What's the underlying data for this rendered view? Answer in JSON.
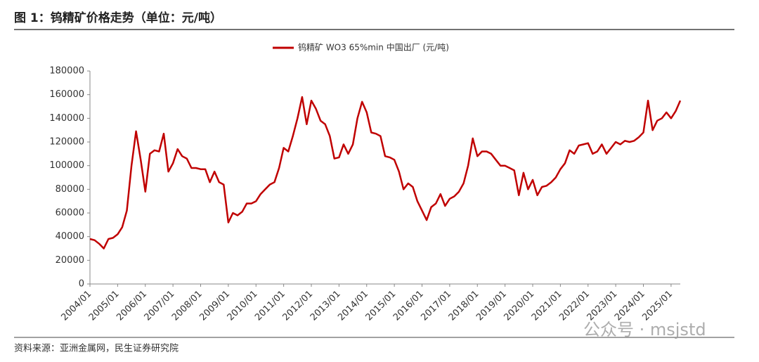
{
  "title": "图 1：钨精矿价格走势（单位：元/吨）",
  "source": "资料来源：亚洲金属网，民生证券研究院",
  "watermark": "公众号 · msjstd",
  "chart_data": {
    "type": "line",
    "x": [
      "2004/01",
      "2004/03",
      "2004/05",
      "2004/07",
      "2004/09",
      "2004/11",
      "2005/01",
      "2005/03",
      "2005/05",
      "2005/07",
      "2005/09",
      "2005/11",
      "2006/01",
      "2006/03",
      "2006/05",
      "2006/07",
      "2006/09",
      "2006/11",
      "2007/01",
      "2007/03",
      "2007/05",
      "2007/07",
      "2007/09",
      "2007/11",
      "2008/01",
      "2008/03",
      "2008/05",
      "2008/07",
      "2008/09",
      "2008/11",
      "2009/01",
      "2009/03",
      "2009/05",
      "2009/07",
      "2009/09",
      "2009/11",
      "2010/01",
      "2010/03",
      "2010/05",
      "2010/07",
      "2010/09",
      "2010/11",
      "2011/01",
      "2011/03",
      "2011/05",
      "2011/07",
      "2011/09",
      "2011/11",
      "2012/01",
      "2012/03",
      "2012/05",
      "2012/07",
      "2012/09",
      "2012/11",
      "2013/01",
      "2013/03",
      "2013/05",
      "2013/07",
      "2013/09",
      "2013/11",
      "2014/01",
      "2014/03",
      "2014/05",
      "2014/07",
      "2014/09",
      "2014/11",
      "2015/01",
      "2015/03",
      "2015/05",
      "2015/07",
      "2015/09",
      "2015/11",
      "2016/01",
      "2016/03",
      "2016/05",
      "2016/07",
      "2016/09",
      "2016/11",
      "2017/01",
      "2017/03",
      "2017/05",
      "2017/07",
      "2017/09",
      "2017/11",
      "2018/01",
      "2018/03",
      "2018/05",
      "2018/07",
      "2018/09",
      "2018/11",
      "2019/01",
      "2019/03",
      "2019/05",
      "2019/07",
      "2019/09",
      "2019/11",
      "2020/01",
      "2020/03",
      "2020/05",
      "2020/07",
      "2020/09",
      "2020/11",
      "2021/01",
      "2021/03",
      "2021/05",
      "2021/07",
      "2021/09",
      "2021/11",
      "2022/01",
      "2022/03",
      "2022/05",
      "2022/07",
      "2022/09",
      "2022/11",
      "2023/01",
      "2023/03",
      "2023/05",
      "2023/07",
      "2023/09",
      "2023/11",
      "2024/01",
      "2024/03",
      "2024/05",
      "2024/07",
      "2024/09",
      "2024/11",
      "2025/01",
      "2025/03",
      "2025/05"
    ],
    "series": [
      {
        "name": "钨精矿 WO3 65%min 中国出厂 (元/吨)",
        "color": "#c00000",
        "values": [
          38000,
          37000,
          34000,
          30000,
          38000,
          39000,
          42000,
          48000,
          62000,
          100000,
          129000,
          105000,
          78000,
          110000,
          113000,
          112000,
          127000,
          95000,
          102000,
          114000,
          108000,
          106000,
          98000,
          98000,
          97000,
          97000,
          86000,
          95000,
          86000,
          84000,
          52000,
          60000,
          58000,
          61000,
          68000,
          68000,
          70000,
          76000,
          80000,
          84000,
          86000,
          98000,
          115000,
          112000,
          125000,
          140000,
          158000,
          135000,
          155000,
          148000,
          138000,
          135000,
          125000,
          106000,
          107000,
          118000,
          110000,
          118000,
          140000,
          154000,
          145000,
          128000,
          127000,
          125000,
          108000,
          107000,
          105000,
          95000,
          80000,
          85000,
          82000,
          70000,
          62000,
          54000,
          65000,
          68000,
          76000,
          66000,
          72000,
          74000,
          78000,
          85000,
          100000,
          123000,
          108000,
          112000,
          112000,
          110000,
          105000,
          100000,
          100000,
          98000,
          96000,
          75000,
          94000,
          80000,
          88000,
          75000,
          82000,
          83000,
          86000,
          90000,
          97000,
          102000,
          113000,
          110000,
          117000,
          118000,
          119000,
          110000,
          112000,
          118000,
          110000,
          115000,
          120000,
          118000,
          121000,
          120000,
          121000,
          124000,
          128000,
          155000,
          130000,
          138000,
          140000,
          145000,
          140000,
          146000,
          155000
        ]
      }
    ],
    "xlim": [
      "2004/01",
      "2025/05"
    ],
    "xticks": [
      "2004/01",
      "2005/01",
      "2006/01",
      "2007/01",
      "2008/01",
      "2009/01",
      "2010/01",
      "2011/01",
      "2012/01",
      "2013/01",
      "2014/01",
      "2015/01",
      "2016/01",
      "2017/01",
      "2018/01",
      "2019/01",
      "2020/01",
      "2021/01",
      "2022/01",
      "2023/01",
      "2024/01",
      "2025/01"
    ],
    "ylim": [
      0,
      180000
    ],
    "yticks": [
      0,
      20000,
      40000,
      60000,
      80000,
      100000,
      120000,
      140000,
      160000,
      180000
    ],
    "legend": "top"
  }
}
